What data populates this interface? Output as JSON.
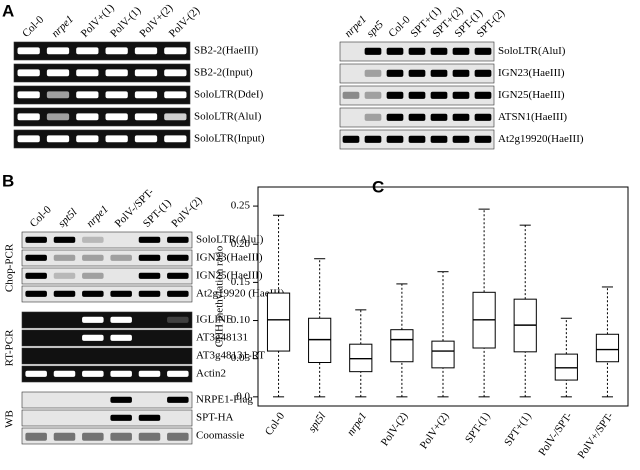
{
  "panel_a": {
    "label": "A",
    "left": {
      "lanes": [
        "Col-0",
        "nrpe1",
        "PolV+(1)",
        "PolV-(1)",
        "PolV+(2)",
        "PolV-(2)"
      ],
      "rows": [
        "SB2-2(HaeIII)",
        "SB2-2(Input)",
        "SoloLTR(DdeI)",
        "SoloLTR(AluI)",
        "SoloLTR(Input)"
      ]
    },
    "right": {
      "lanes": [
        "nrpe1",
        "spt5",
        "Col-0",
        "SPT+(1)",
        "SPT+(2)",
        "SPT-(1)",
        "SPT-(2)"
      ],
      "rows": [
        "SoloLTR(AluI)",
        "IGN23(HaeIII)",
        "IGN25(HaeIII)",
        "ATSN1(HaeIII)",
        "At2g19920(HaeIII)"
      ]
    }
  },
  "panel_b": {
    "label": "B",
    "lanes": [
      "Col-0",
      "spt5l",
      "nrpe1",
      "PolV-/SPT-",
      "SPT-(1)",
      "PolV-(2)"
    ],
    "groups": [
      {
        "name": "Chop-PCR",
        "rows": [
          "SoloLTR(AluI)",
          "IGN23(HaeIII)",
          "IGN25(HaeIII)",
          "At2g19920 (HaeIII)"
        ]
      },
      {
        "name": "RT-PCR",
        "rows": [
          "IGLINE",
          "AT3g48131",
          "AT3g48131-RT",
          "Actin2"
        ]
      },
      {
        "name": "WB",
        "rows": [
          "NRPE1-Flag",
          "SPT-HA",
          "Coomassie"
        ]
      }
    ]
  },
  "chart_data": {
    "type": "box",
    "title": "C",
    "y_label": "CHH methylation ratio",
    "color": "#000000",
    "categories": [
      "Col-0",
      "spt5l",
      "nrpe1",
      "PolV-(2)",
      "PolV+(2)",
      "SPT-(1)",
      "SPT+(1)",
      "PolV-/SPT-",
      "PolV+/SPT-"
    ],
    "whislo": [
      0,
      0,
      0,
      0,
      0,
      0,
      0,
      0,
      0
    ],
    "q1": [
      0.06,
      0.045,
      0.033,
      0.046,
      0.038,
      0.064,
      0.059,
      0.022,
      0.046
    ],
    "median": [
      0.101,
      0.075,
      0.05,
      0.075,
      0.06,
      0.101,
      0.094,
      0.038,
      0.062
    ],
    "q3": [
      0.136,
      0.103,
      0.069,
      0.088,
      0.073,
      0.137,
      0.128,
      0.056,
      0.082
    ],
    "whishi": [
      0.238,
      0.181,
      0.114,
      0.148,
      0.164,
      0.246,
      0.225,
      0.103,
      0.144
    ],
    "ylim": [
      -0.012,
      0.275
    ],
    "yticks": [
      {
        "value": 0,
        "label": "0.0"
      },
      0.05,
      {
        "value": 0.1,
        "label": "0.10"
      },
      0.15,
      {
        "value": 0.2,
        "label": "0.20"
      },
      0.25
    ]
  }
}
